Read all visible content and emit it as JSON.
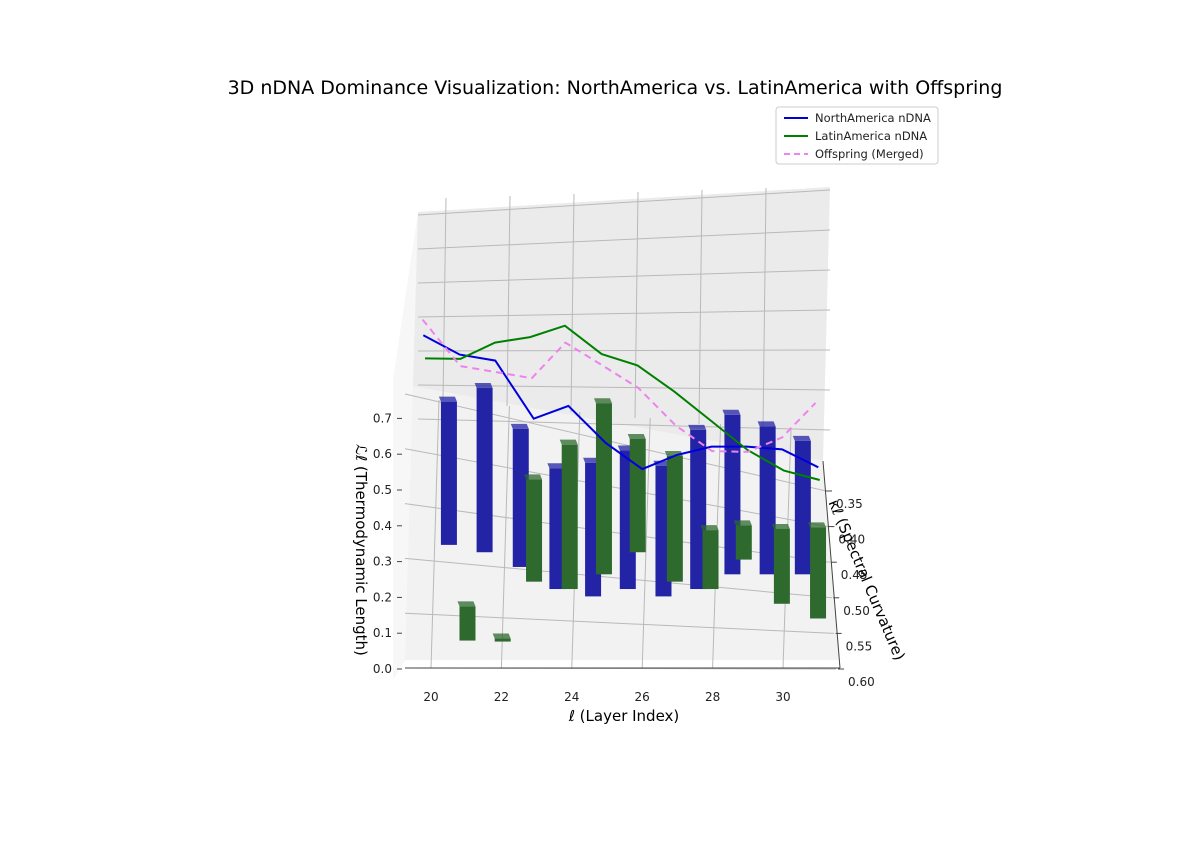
{
  "chart_data": {
    "type": "bar3d",
    "title": "3D nDNA Dominance Visualization: NorthAmerica vs. LatinAmerica with Offspring",
    "xlabel": "ℓ (Layer Index)",
    "ylabel": "κℓ (Spectral Curvature)",
    "zlabel": "ℒℓ (Thermodynamic Length)",
    "x_ticks": [
      20,
      22,
      24,
      26,
      28,
      30
    ],
    "y_ticks": [
      "0.35",
      "0.40",
      "0.45",
      "0.50",
      "0.55",
      "0.60"
    ],
    "z_ticks": [
      "0.0",
      "0.1",
      "0.2",
      "0.3",
      "0.4",
      "0.5",
      "0.6",
      "0.7"
    ],
    "xlim": [
      19.5,
      31.5
    ],
    "ylim": [
      0.32,
      0.61
    ],
    "zlim": [
      0.0,
      0.78
    ],
    "grid": true,
    "legend_position": "top-right",
    "layers": [
      20,
      21,
      22,
      23,
      24,
      25,
      26,
      27,
      28,
      29,
      30,
      31
    ],
    "series": [
      {
        "name": "NorthAmerica nDNA",
        "color": "#0000dd",
        "style": "solid",
        "kappa": [
          0.37,
          0.38,
          0.39,
          0.4,
          0.41,
          0.42,
          0.43,
          0.43,
          0.43,
          0.43,
          0.43,
          0.44
        ],
        "length": [
          0.62,
          0.57,
          0.57,
          0.38,
          0.45,
          0.34,
          0.27,
          0.32,
          0.35,
          0.35,
          0.34,
          0.3
        ]
      },
      {
        "name": "LatinAmerica nDNA",
        "color": "#008000",
        "style": "solid",
        "kappa": [
          0.4,
          0.41,
          0.42,
          0.43,
          0.44,
          0.45,
          0.46,
          0.47,
          0.48,
          0.48,
          0.48,
          0.49
        ],
        "length": [
          0.6,
          0.62,
          0.7,
          0.74,
          0.8,
          0.72,
          0.7,
          0.63,
          0.55,
          0.45,
          0.38,
          0.37
        ]
      },
      {
        "name": "Offspring (Merged)",
        "color": "#ee82ee",
        "style": "dashed",
        "kappa": [
          0.38,
          0.39,
          0.4,
          0.41,
          0.42,
          0.43,
          0.44,
          0.45,
          0.45,
          0.46,
          0.46,
          0.46
        ],
        "length": [
          0.7,
          0.55,
          0.55,
          0.55,
          0.7,
          0.64,
          0.58,
          0.47,
          0.38,
          0.4,
          0.45,
          0.57
        ]
      }
    ],
    "bars": [
      {
        "name": "NorthAmerica nDNA",
        "color": "#2323a6",
        "values": [
          0.51,
          0.58,
          0.48,
          0.41,
          0.45,
          0.47,
          0.44,
          0.54,
          0.55,
          0.51,
          0.46
        ]
      },
      {
        "name": "LatinAmerica nDNA",
        "color": "#2e6a2e",
        "values": [
          0.11,
          0.0,
          0.35,
          0.49,
          0.59,
          0.4,
          0.43,
          0.2,
          0.12,
          0.25,
          0.3
        ]
      }
    ]
  }
}
